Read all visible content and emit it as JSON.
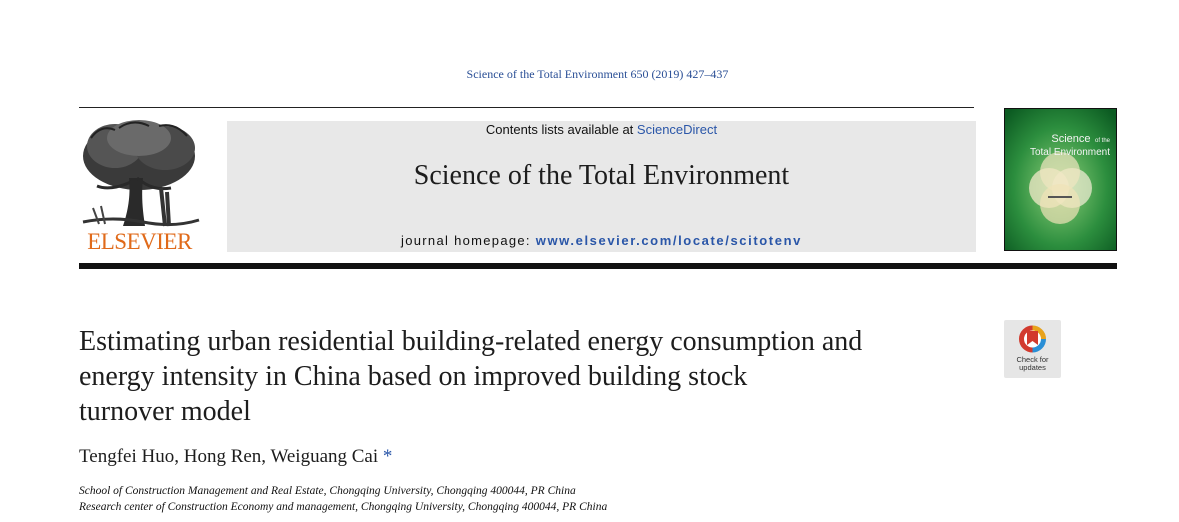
{
  "header": {
    "citation": "Science of the Total Environment 650 (2019) 427–437",
    "publisher_logo_text": "ELSEVIER",
    "contents_prefix": "Contents lists available at ",
    "contents_link": "ScienceDirect",
    "journal_name": "Science of the Total Environment",
    "homepage_prefix": "journal homepage: ",
    "homepage_url": "www.elsevier.com/locate/scitotenv",
    "cover_title_line1": "Science",
    "cover_title_line1_small": "of the",
    "cover_title_line2": "Total Environment"
  },
  "article": {
    "title_lines": [
      "Estimating urban residential building-related energy consumption and",
      "energy intensity in China based on improved building stock",
      "turnover model"
    ],
    "authors": "Tengfei Huo, Hong Ren, Weiguang Cai",
    "corresponding_mark": "*",
    "affiliations": [
      "School of Construction Management and Real Estate, Chongqing University, Chongqing 400044, PR China",
      "Research center of Construction Economy and management, Chongqing University, Chongqing 400044, PR China"
    ]
  },
  "badge": {
    "line1": "Check for",
    "line2": "updates"
  },
  "colors": {
    "link_blue": "#2a56a8",
    "elsevier_orange": "#e06a1a",
    "banner_gray": "#e8e8e8",
    "cover_green": "#1a7a34"
  }
}
